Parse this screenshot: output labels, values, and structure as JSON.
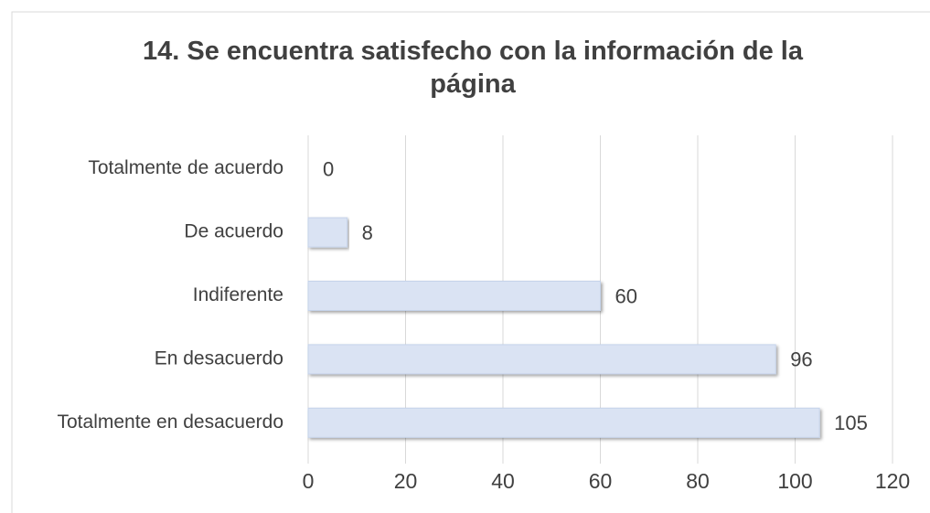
{
  "chart_data": {
    "type": "bar",
    "orientation": "horizontal",
    "title": "14. Se encuentra satisfecho con la información de la página",
    "categories": [
      "Totalmente de acuerdo",
      "De acuerdo",
      "Indiferente",
      "En desacuerdo",
      "Totalmente en desacuerdo"
    ],
    "values": [
      0,
      8,
      60,
      96,
      105
    ],
    "color": "#dae3f3",
    "xlim": [
      0,
      120
    ],
    "xticks": [
      0,
      20,
      40,
      60,
      80,
      100,
      120
    ],
    "grid": true
  }
}
